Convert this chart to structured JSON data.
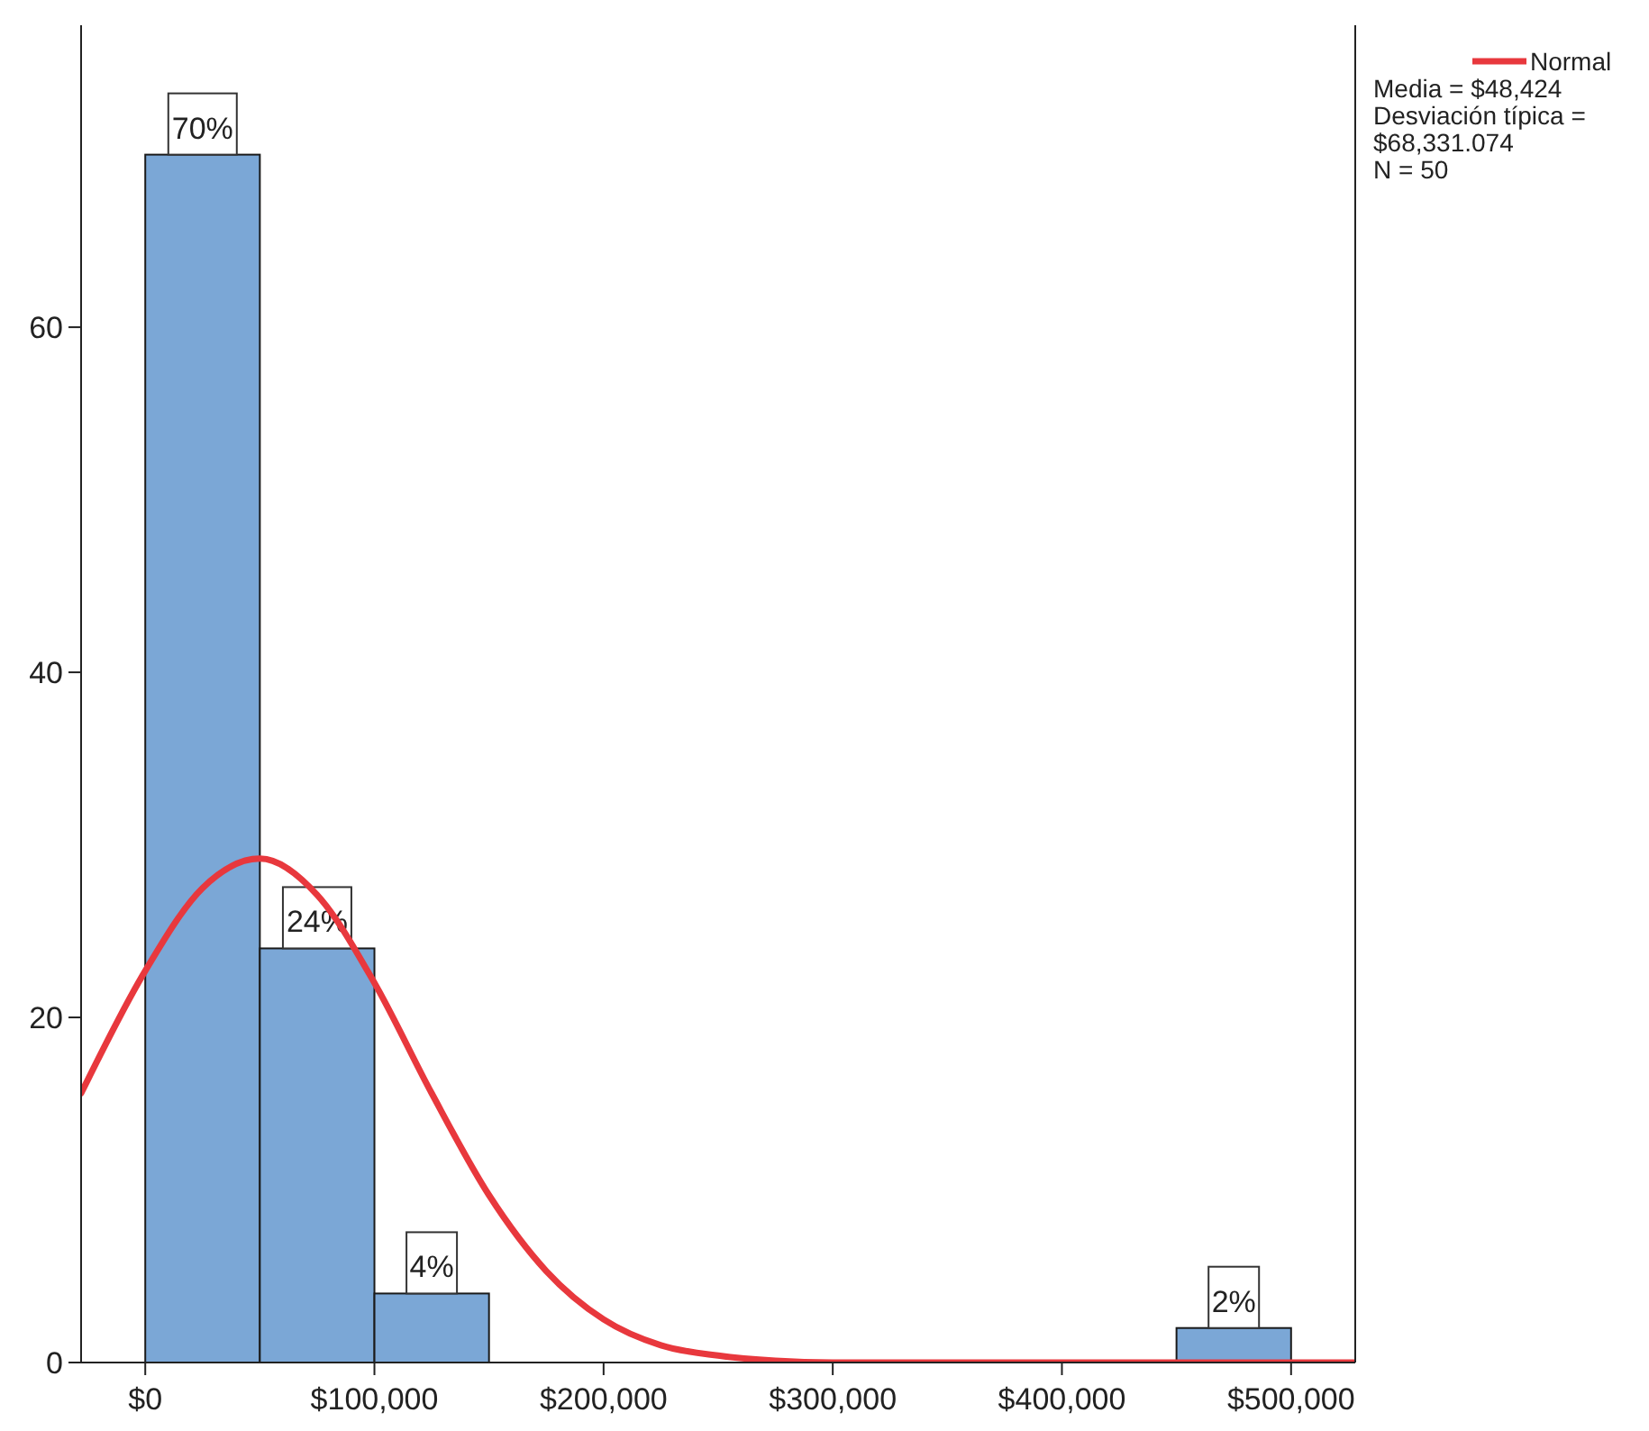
{
  "chart_data": {
    "type": "histogram",
    "bins": [
      0,
      50000,
      100000,
      150000,
      200000,
      250000,
      300000,
      350000,
      400000,
      450000,
      500000
    ],
    "series": [
      {
        "color": "#7ba7d6",
        "values": [
          70,
          24,
          4,
          0,
          0,
          0,
          0,
          0,
          0,
          2
        ],
        "value_labels": [
          "70%",
          "24%",
          "4%",
          null,
          null,
          null,
          null,
          null,
          null,
          "2%"
        ]
      },
      {
        "type": "line",
        "name": "Normal",
        "color": "#e8383d",
        "x": [
          -28000,
          0,
          25000,
          50000,
          75000,
          100000,
          125000,
          150000,
          175000,
          200000,
          225000,
          250000,
          275000,
          300000,
          325000,
          375000,
          425000,
          475000,
          528000
        ],
        "values": [
          15.6,
          22.7,
          27.5,
          29.2,
          27.1,
          22.0,
          15.6,
          9.7,
          5.3,
          2.5,
          1.0,
          0.4,
          0.1,
          0.0,
          0.0,
          0.0,
          0.0,
          0.0,
          0.0
        ]
      }
    ],
    "xlim": [
      -28000,
      528000
    ],
    "xticks": [
      {
        "value": 0,
        "label": "$0"
      },
      {
        "value": 100000,
        "label": "$100,000"
      },
      {
        "value": 200000,
        "label": "$200,000"
      },
      {
        "value": 300000,
        "label": "$300,000"
      },
      {
        "value": 400000,
        "label": "$400,000"
      },
      {
        "value": 500000,
        "label": "$500,000"
      }
    ],
    "ylim": [
      0,
      77.5
    ],
    "yticks": [
      0,
      20,
      40,
      60
    ],
    "legend": "top right",
    "annotations": [
      "Media = $48,424",
      "Desviación típica = $68,331.074",
      "N = 50"
    ]
  }
}
